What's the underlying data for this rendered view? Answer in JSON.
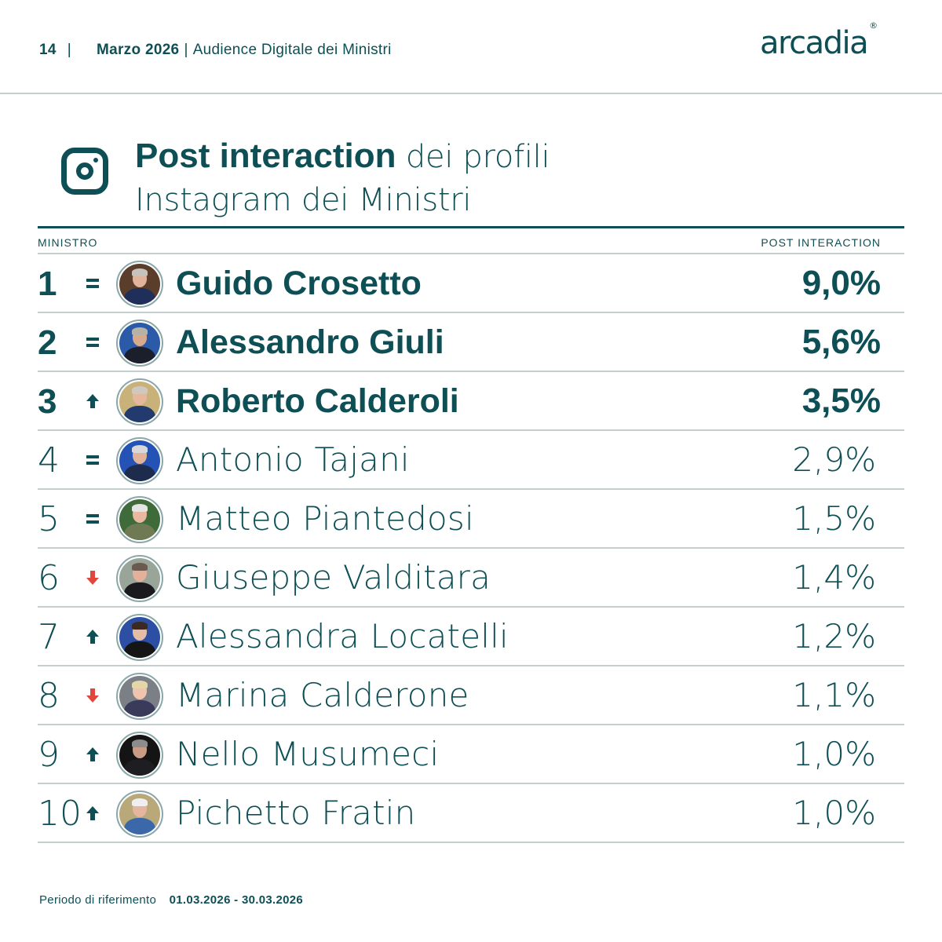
{
  "header": {
    "page_number": "14",
    "separator": "|",
    "month": "Marzo 2026",
    "subtitle": "Audience Digitale dei Ministri",
    "logo_text": "arcadia",
    "logo_mark": "®"
  },
  "title": {
    "icon": "instagram-icon",
    "bold": "Post interaction",
    "light_line1": " dei profili",
    "light_line2": "Instagram dei Ministri"
  },
  "table": {
    "col_left": "MINISTRO",
    "col_right": "POST INTERACTION",
    "rows": [
      {
        "rank": "1",
        "trend": "equal",
        "name": "Guido Crosetto",
        "value": "9,0%",
        "highlight": true
      },
      {
        "rank": "2",
        "trend": "equal",
        "name": "Alessandro Giuli",
        "value": "5,6%",
        "highlight": true
      },
      {
        "rank": "3",
        "trend": "up",
        "name": "Roberto Calderoli",
        "value": "3,5%",
        "highlight": true
      },
      {
        "rank": "4",
        "trend": "equal",
        "name": "Antonio Tajani",
        "value": "2,9%",
        "highlight": false
      },
      {
        "rank": "5",
        "trend": "equal",
        "name": "Matteo Piantedosi",
        "value": "1,5%",
        "highlight": false
      },
      {
        "rank": "6",
        "trend": "down",
        "name": "Giuseppe Valditara",
        "value": "1,4%",
        "highlight": false
      },
      {
        "rank": "7",
        "trend": "up",
        "name": "Alessandra Locatelli",
        "value": "1,2%",
        "highlight": false
      },
      {
        "rank": "8",
        "trend": "down",
        "name": "Marina Calderone",
        "value": "1,1%",
        "highlight": false
      },
      {
        "rank": "9",
        "trend": "up",
        "name": "Nello Musumeci",
        "value": "1,0%",
        "highlight": false
      },
      {
        "rank": "10",
        "trend": "up",
        "name": "Pichetto Fratin",
        "value": "1,0%",
        "highlight": false
      }
    ]
  },
  "footer": {
    "label": "Periodo di riferimento",
    "period": "01.03.2026 - 30.03.2026"
  },
  "colors": {
    "primary": "#0d4f55",
    "rule": "#c3cfcf",
    "trend_up": "#0d4f55",
    "trend_down": "#e0463c",
    "background": "#ffffff"
  },
  "chart_data": {
    "type": "table",
    "title": "Post interaction dei profili Instagram dei Ministri",
    "columns": [
      "Rank",
      "Trend",
      "Ministro",
      "Post interaction"
    ],
    "categories": [
      "Guido Crosetto",
      "Alessandro Giuli",
      "Roberto Calderoli",
      "Antonio Tajani",
      "Matteo Piantedosi",
      "Giuseppe Valditara",
      "Alessandra Locatelli",
      "Marina Calderone",
      "Nello Musumeci",
      "Pichetto Fratin"
    ],
    "values": [
      9.0,
      5.6,
      3.5,
      2.9,
      1.5,
      1.4,
      1.2,
      1.1,
      1.0,
      1.0
    ],
    "trends": [
      "=",
      "=",
      "up",
      "=",
      "=",
      "down",
      "up",
      "down",
      "up",
      "up"
    ],
    "unit": "%",
    "period": "01.03.2026 - 30.03.2026"
  }
}
